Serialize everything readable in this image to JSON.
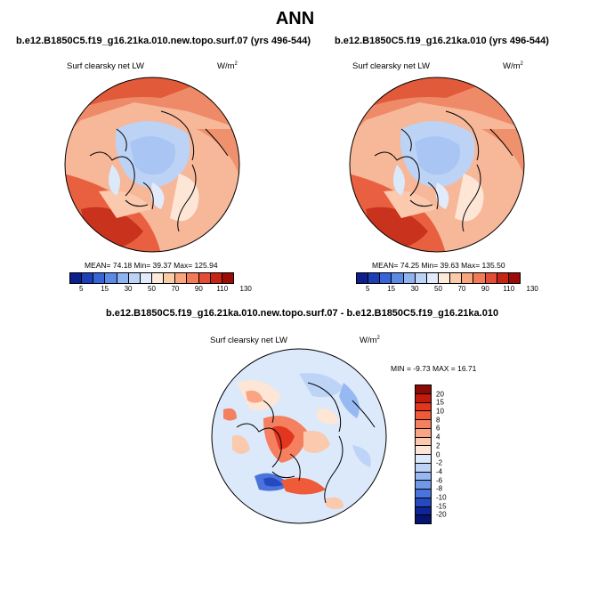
{
  "title": "ANN",
  "panels": [
    {
      "case_title": "b.e12.B1850C5.f19_g16.21ka.010.new.topo.surf.07 (yrs 496-544)",
      "variable": "Surf clearsky net LW",
      "units": "W/m",
      "units_sup": "2",
      "stats": "MEAN= 74.18  Min= 39.37  Max= 125.94"
    },
    {
      "case_title": "b.e12.B1850C5.f19_g16.21ka.010 (yrs 496-544)",
      "variable": "Surf clearsky net LW",
      "units": "W/m",
      "units_sup": "2",
      "stats": "MEAN= 74.25  Min= 39.63  Max= 135.50"
    }
  ],
  "diff_panel": {
    "case_title": "b.e12.B1850C5.f19_g16.21ka.010.new.topo.surf.07 - b.e12.B1850C5.f19_g16.21ka.010",
    "variable": "Surf clearsky net LW",
    "units": "W/m",
    "units_sup": "2",
    "stats": "MIN = -9.73 MAX = 16.71"
  },
  "colorbar_abs": {
    "labels": [
      "5",
      "15",
      "30",
      "50",
      "70",
      "90",
      "110",
      "130"
    ],
    "colors": [
      "#0c1f8c",
      "#1c3fb8",
      "#3764d8",
      "#5b8ae6",
      "#8fb2f0",
      "#bcd3f6",
      "#e2ebfb",
      "#fdebd9",
      "#fbcaa6",
      "#f9a57e",
      "#f27a57",
      "#e64b33",
      "#c82414",
      "#9c0b06"
    ]
  },
  "colorbar_diff": {
    "labels": [
      "20",
      "15",
      "10",
      "8",
      "6",
      "4",
      "2",
      "0",
      "-2",
      "-4",
      "-6",
      "-8",
      "-10",
      "-15",
      "-20"
    ],
    "colors": [
      "#8b0a06",
      "#c21b0e",
      "#e2361f",
      "#ef5a38",
      "#f58060",
      "#f9a585",
      "#fbc9ad",
      "#fde6d6",
      "#dbe9fb",
      "#bdd4f7",
      "#97b9f1",
      "#6f98e8",
      "#4a73dc",
      "#2649c0",
      "#0d2596",
      "#051470"
    ]
  },
  "chart_data": [
    {
      "type": "heatmap",
      "title": "b.e12.B1850C5.f19_g16.21ka.010.new.topo.surf.07 (yrs 496-544)",
      "variable": "Surf clearsky net LW",
      "units": "W/m^2",
      "projection": "north polar stereographic",
      "levels": [
        5,
        15,
        30,
        50,
        70,
        90,
        110,
        130
      ],
      "mean": 74.18,
      "min": 39.37,
      "max": 125.94
    },
    {
      "type": "heatmap",
      "title": "b.e12.B1850C5.f19_g16.21ka.010 (yrs 496-544)",
      "variable": "Surf clearsky net LW",
      "units": "W/m^2",
      "projection": "north polar stereographic",
      "levels": [
        5,
        15,
        30,
        50,
        70,
        90,
        110,
        130
      ],
      "mean": 74.25,
      "min": 39.63,
      "max": 135.5
    },
    {
      "type": "heatmap",
      "title": "b.e12.B1850C5.f19_g16.21ka.010.new.topo.surf.07 - b.e12.B1850C5.f19_g16.21ka.010",
      "variable": "Surf clearsky net LW",
      "units": "W/m^2",
      "projection": "north polar stereographic",
      "levels": [
        -20,
        -15,
        -10,
        -8,
        -6,
        -4,
        -2,
        0,
        2,
        4,
        6,
        8,
        10,
        15,
        20
      ],
      "min": -9.73,
      "max": 16.71
    }
  ]
}
